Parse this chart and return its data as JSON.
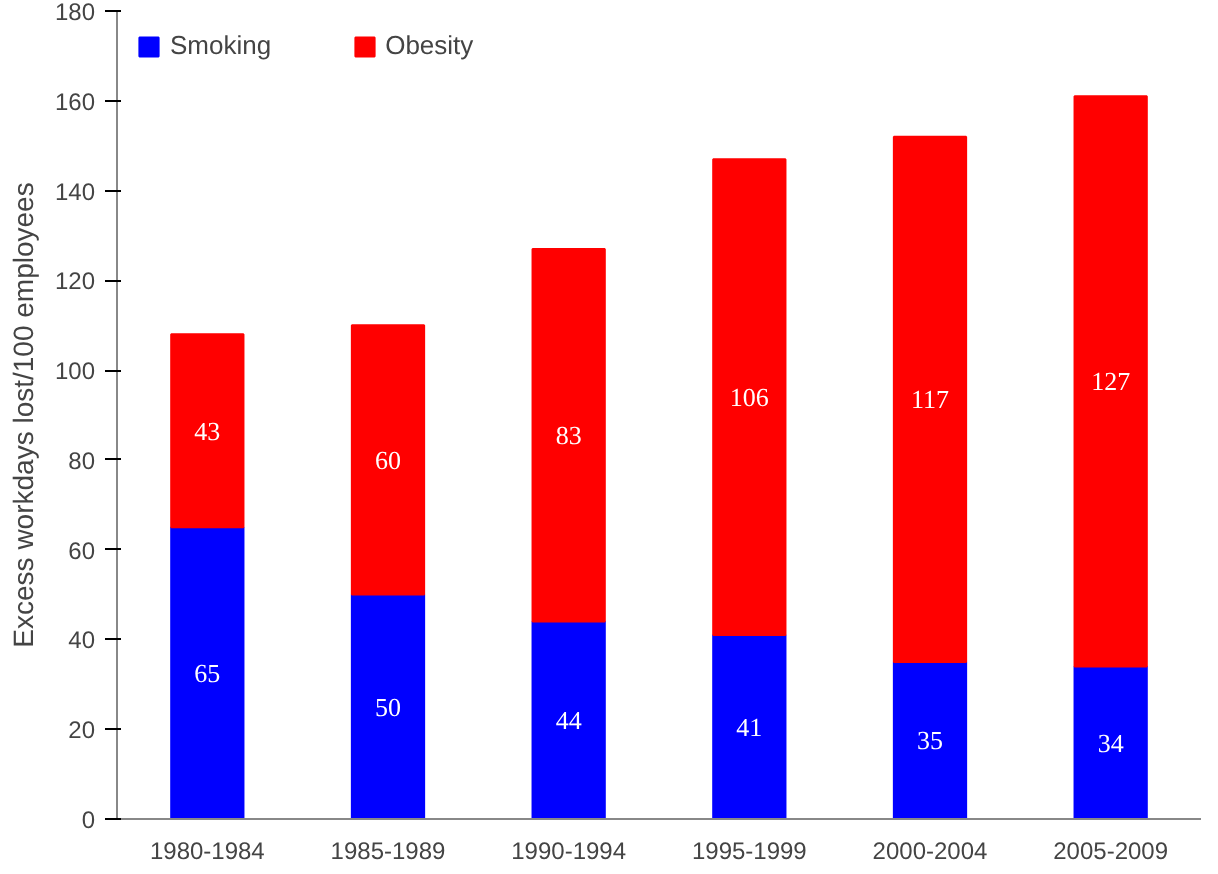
{
  "chart_data": {
    "type": "bar",
    "stacked": true,
    "ylabel": "Excess workdays lost/100 employees",
    "categories": [
      "1980-1984",
      "1985-1989",
      "1990-1994",
      "1995-1999",
      "2000-2004",
      "2005-2009"
    ],
    "series": [
      {
        "name": "Smoking",
        "color": "#0000ff",
        "values": [
          65,
          50,
          44,
          41,
          35,
          34
        ]
      },
      {
        "name": "Obesity",
        "color": "#ff0000",
        "values": [
          43,
          60,
          83,
          106,
          117,
          127
        ]
      }
    ],
    "ylim": [
      0,
      180
    ],
    "yticks": [
      0,
      20,
      40,
      60,
      80,
      100,
      120,
      140,
      160,
      180
    ],
    "data_labels": true,
    "legend": "top left",
    "grid": false
  }
}
